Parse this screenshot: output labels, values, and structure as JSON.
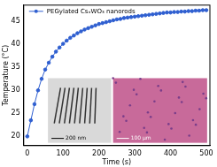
{
  "chart_data": {
    "type": "line",
    "x": [
      0,
      10,
      20,
      30,
      40,
      50,
      60,
      70,
      80,
      90,
      100,
      110,
      120,
      130,
      140,
      150,
      160,
      170,
      180,
      190,
      200,
      210,
      220,
      230,
      240,
      250,
      260,
      270,
      280,
      290,
      300,
      310,
      320,
      330,
      340,
      350,
      360,
      370,
      380,
      390,
      400,
      410,
      420,
      430,
      440,
      450,
      460,
      470,
      480,
      490,
      500
    ],
    "series": [
      {
        "name": "PEGylated CsₓWO₃ nanorods",
        "color": "#2f5fd0",
        "marker": "circle",
        "line_style": "solid",
        "values": [
          20.0,
          23.5,
          27.0,
          30.0,
          32.5,
          34.5,
          36.0,
          37.3,
          38.4,
          39.3,
          40.1,
          40.8,
          41.4,
          41.9,
          42.4,
          42.8,
          43.2,
          43.5,
          43.8,
          44.1,
          44.4,
          44.6,
          44.8,
          45.0,
          45.2,
          45.4,
          45.5,
          45.7,
          45.8,
          45.9,
          46.0,
          46.1,
          46.2,
          46.3,
          46.4,
          46.5,
          46.6,
          46.7,
          46.8,
          46.9,
          46.9,
          47.0,
          47.0,
          47.1,
          47.1,
          47.2,
          47.2,
          47.3,
          47.3,
          47.4,
          47.4
        ]
      }
    ],
    "x_label": "Time (s)",
    "y_label": "Temperature (°C)",
    "xlim": [
      -10,
      510
    ],
    "ylim": [
      18,
      48.5
    ],
    "xticks": [
      0,
      100,
      200,
      300,
      400,
      500
    ],
    "yticks": [
      20,
      25,
      30,
      35,
      40,
      45
    ],
    "grid": false,
    "legend": "upper left",
    "annotations": [
      "200 nm",
      "100 μm"
    ]
  }
}
